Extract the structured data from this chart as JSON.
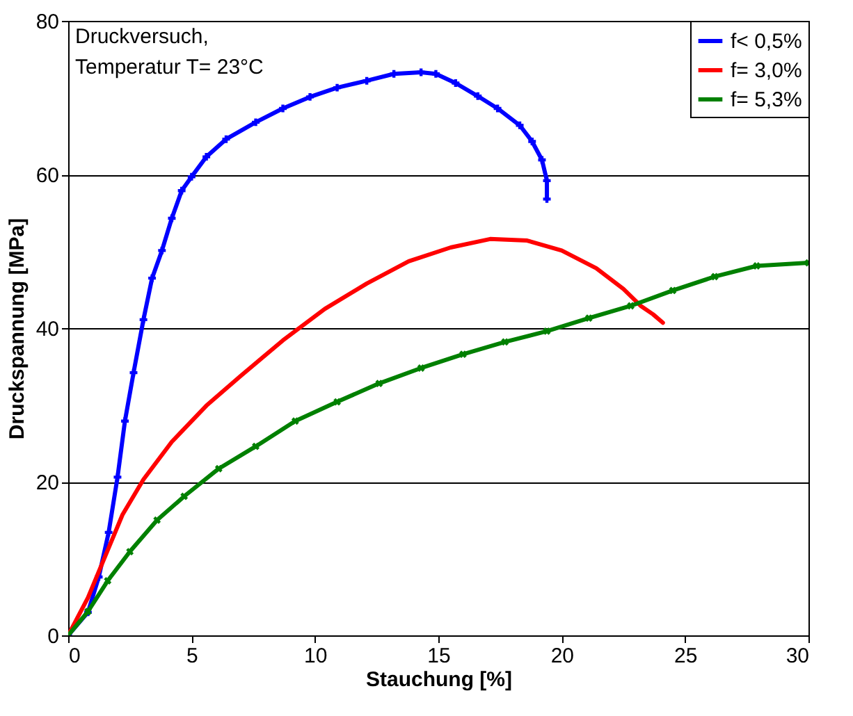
{
  "chart_data": {
    "type": "line",
    "xlabel": "Stauchung [%]",
    "ylabel": "Druckspannung [MPa]",
    "annotations": [
      "Druckversuch,",
      "Temperatur T= 23°C"
    ],
    "xlim": [
      0,
      30
    ],
    "xticks": [
      0,
      5,
      10,
      15,
      20,
      25,
      30
    ],
    "ylim": [
      0,
      80
    ],
    "yticks": [
      0,
      20,
      40,
      60,
      80
    ],
    "grid": "y",
    "legend": "top right",
    "series": [
      {
        "name": "f< 0,5%",
        "color": "#0000ff",
        "marker": "cross",
        "x": [
          0,
          0.8,
          1.24,
          1.64,
          2,
          2.3,
          2.65,
          3.05,
          3.4,
          3.8,
          4.2,
          4.6,
          5,
          5.6,
          6.4,
          7.6,
          8.7,
          9.8,
          10.9,
          12.1,
          13.2,
          14.3,
          14.9,
          15.7,
          16.6,
          17.4,
          18.3,
          18.8,
          19.2,
          19.4,
          19.4
        ],
        "values": [
          0,
          3,
          7.6,
          13.4,
          20.6,
          27.9,
          34.2,
          41.1,
          46.5,
          50.1,
          54.3,
          57.9,
          59.7,
          62.3,
          64.6,
          66.8,
          68.6,
          70.1,
          71.3,
          72.2,
          73.1,
          73.3,
          73.1,
          71.9,
          70.2,
          68.6,
          66.4,
          64.3,
          61.9,
          59.2,
          56.8
        ]
      },
      {
        "name": "f= 3,0%",
        "color": "#ff0000",
        "marker": "none",
        "x": [
          0,
          0.8,
          1.5,
          2.2,
          3.05,
          4.2,
          5.6,
          7,
          8.7,
          10.4,
          12.1,
          13.8,
          15.5,
          17.1,
          18.6,
          20,
          21.4,
          22.5,
          23.2,
          23.7,
          24.1
        ],
        "values": [
          0,
          4.9,
          10.3,
          15.7,
          20.3,
          25.2,
          29.9,
          33.8,
          38.4,
          42.5,
          45.8,
          48.7,
          50.5,
          51.6,
          51.4,
          50.1,
          47.8,
          45.1,
          42.9,
          41.8,
          40.7
        ]
      },
      {
        "name": "f= 5,3%",
        "color": "#008000",
        "marker": "x",
        "x": [
          0,
          0.8,
          1.6,
          2.5,
          3.6,
          4.7,
          6.1,
          7.6,
          9.2,
          10.9,
          12.6,
          14.3,
          16,
          17.7,
          19.4,
          21.1,
          22.8,
          24.5,
          26.2,
          27.9,
          30
        ],
        "values": [
          0,
          3.1,
          7.1,
          10.9,
          15,
          18.1,
          21.7,
          24.6,
          27.9,
          30.4,
          32.8,
          34.8,
          36.6,
          38.2,
          39.6,
          41.3,
          42.9,
          44.9,
          46.7,
          48.1,
          48.5
        ]
      }
    ]
  }
}
